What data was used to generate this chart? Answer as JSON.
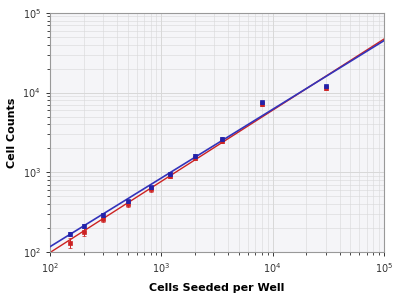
{
  "xlabel": "Cells Seeded per Well",
  "ylabel": "Cell Counts",
  "xlim": [
    100,
    100000
  ],
  "ylim": [
    100,
    100000
  ],
  "blue_x": [
    150,
    200,
    300,
    500,
    800,
    1200,
    2000,
    3500,
    8000,
    30000
  ],
  "blue_y": [
    170,
    210,
    290,
    430,
    650,
    950,
    1600,
    2600,
    7500,
    12000
  ],
  "blue_yerr": [
    10,
    12,
    15,
    20,
    30,
    50,
    80,
    130,
    350,
    600
  ],
  "red_x": [
    150,
    200,
    300,
    500,
    800,
    1200,
    2000,
    3500,
    8000,
    30000
  ],
  "red_y": [
    130,
    180,
    260,
    400,
    610,
    900,
    1500,
    2500,
    7200,
    11500
  ],
  "red_yerr": [
    18,
    20,
    22,
    30,
    40,
    60,
    90,
    150,
    400,
    700
  ],
  "line_blue_color": "#3333bb",
  "line_red_color": "#cc2222",
  "marker_blue_color": "#2222aa",
  "marker_red_color": "#cc2222",
  "fig_bg_color": "#ffffff",
  "plot_bg_color": "#f5f5f8",
  "grid_color": "#d8d8d8",
  "tick_label_color": "#333333",
  "label_fontsize": 8,
  "tick_fontsize": 7
}
